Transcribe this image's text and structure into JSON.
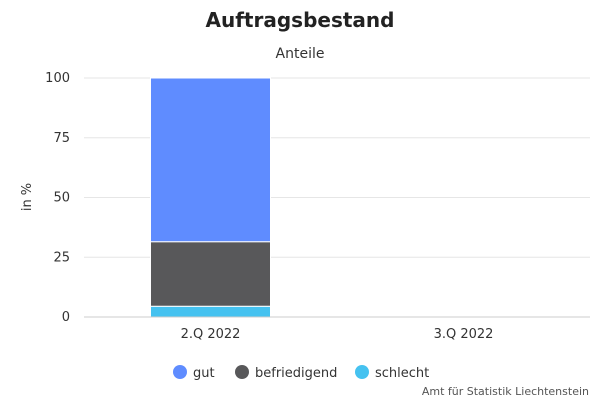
{
  "chart_data": {
    "type": "bar",
    "stacked": true,
    "title": "Auftragsbestand",
    "subtitle": "Anteile",
    "xlabel": "",
    "ylabel": "in %",
    "categories": [
      "2.Q 2022",
      "3.Q 2022"
    ],
    "ylim": [
      0,
      100
    ],
    "yticks": [
      0,
      25,
      50,
      75,
      100
    ],
    "grid": true,
    "legend_position": "bottom-center",
    "series": [
      {
        "name": "schlecht",
        "color": "#45c2f0",
        "values": [
          4.5,
          null
        ]
      },
      {
        "name": "befriedigend",
        "color": "#58585a",
        "values": [
          27,
          null
        ]
      },
      {
        "name": "gut",
        "color": "#5f8cff",
        "values": [
          68.5,
          null
        ]
      }
    ],
    "legend_order": [
      "gut",
      "befriedigend",
      "schlecht"
    ]
  },
  "credit": "Amt für Statistik Liechtenstein"
}
